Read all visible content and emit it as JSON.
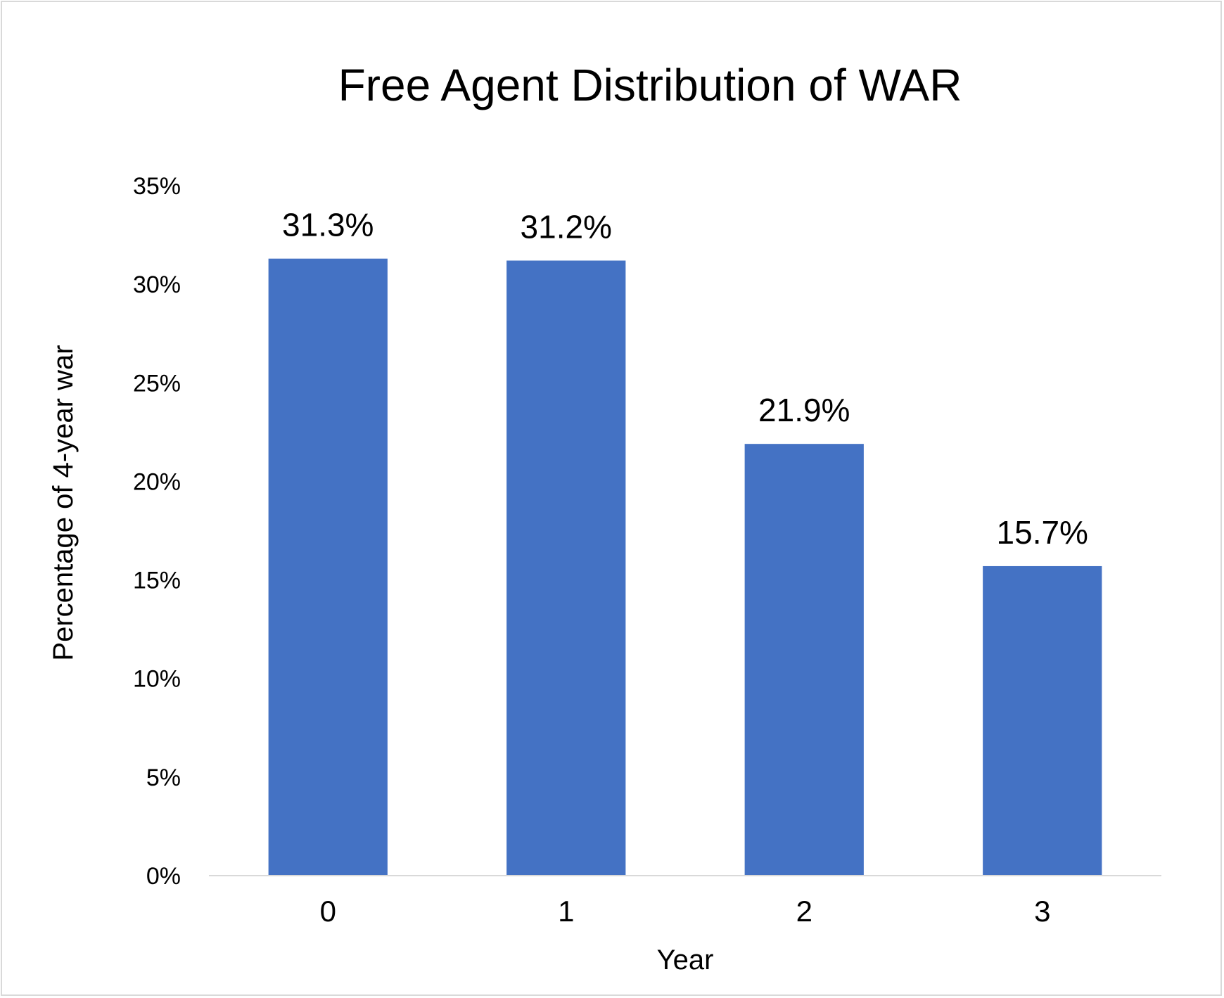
{
  "chart_data": {
    "type": "bar",
    "title": "Free Agent Distribution of WAR",
    "xlabel": "Year",
    "ylabel": "Percentage of 4-year war",
    "categories": [
      "0",
      "1",
      "2",
      "3"
    ],
    "values": [
      31.3,
      31.2,
      21.9,
      15.7
    ],
    "data_labels": [
      "31.3%",
      "31.2%",
      "21.9%",
      "15.7%"
    ],
    "ylim": [
      0,
      35
    ],
    "yticks": [
      0,
      5,
      10,
      15,
      20,
      25,
      30,
      35
    ],
    "ytick_labels": [
      "0%",
      "5%",
      "10%",
      "15%",
      "20%",
      "25%",
      "30%",
      "35%"
    ],
    "grid": false,
    "legend": "none",
    "bar_color": "#4472C4",
    "axis_color": "#d9d9d9"
  }
}
